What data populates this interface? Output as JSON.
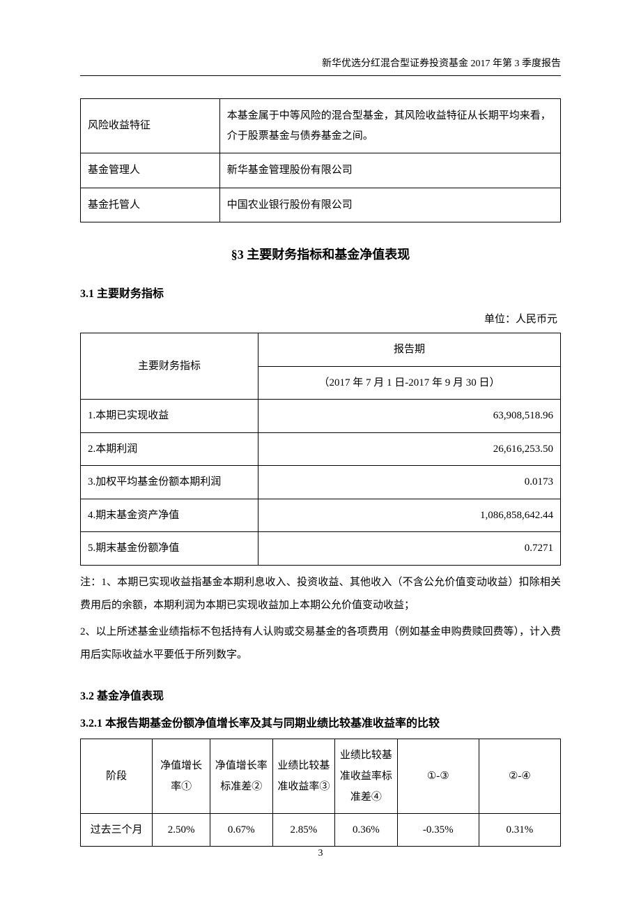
{
  "header": {
    "text": "新华优选分红混合型证券投资基金 2017 年第 3 季度报告"
  },
  "info_table": {
    "rows": [
      {
        "label": "风险收益特征",
        "value": "本基金属于中等风险的混合型基金，其风险收益特征从长期平均来看，介于股票基金与债券基金之间。"
      },
      {
        "label": "基金管理人",
        "value": "新华基金管理股份有限公司"
      },
      {
        "label": "基金托管人",
        "value": "中国农业银行股份有限公司"
      }
    ]
  },
  "section3": {
    "title": "§3  主要财务指标和基金净值表现",
    "sub1": {
      "title": "3.1 主要财务指标",
      "unit": "单位：人民币元",
      "table": {
        "header_label": "主要财务指标",
        "header_period_title": "报告期",
        "header_period_range": "（2017 年 7 月 1 日-2017 年 9 月 30 日）",
        "rows": [
          {
            "label": "1.本期已实现收益",
            "value": "63,908,518.96"
          },
          {
            "label": "2.本期利润",
            "value": "26,616,253.50"
          },
          {
            "label": "3.加权平均基金份额本期利润",
            "value": "0.0173"
          },
          {
            "label": "4.期末基金资产净值",
            "value": "1,086,858,642.44"
          },
          {
            "label": "5.期末基金份额净值",
            "value": "0.7271"
          }
        ]
      },
      "note1": "注：1、本期已实现收益指基金本期利息收入、投资收益、其他收入（不含公允价值变动收益）扣除相关费用后的余额，本期利润为本期已实现收益加上本期公允价值变动收益；",
      "note2": " 2、以上所述基金业绩指标不包括持有人认购或交易基金的各项费用（例如基金申购费赎回费等），计入费用后实际收益水平要低于所列数字。"
    },
    "sub2": {
      "title": "3.2 基金净值表现",
      "sub_title": "3.2.1 本报告期基金份额净值增长率及其与同期业绩比较基准收益率的比较",
      "table": {
        "headers": [
          "阶段",
          "净值增长率①",
          "净值增长率标准差②",
          "业绩比较基准收益率③",
          "业绩比较基准收益率标准差④",
          "①-③",
          "②-④"
        ],
        "rows": [
          {
            "c1": "过去三个月",
            "c2": "2.50%",
            "c3": "0.67%",
            "c4": "2.85%",
            "c5": "0.36%",
            "c6": "-0.35%",
            "c7": "0.31%"
          }
        ]
      }
    }
  },
  "page_number": "3"
}
